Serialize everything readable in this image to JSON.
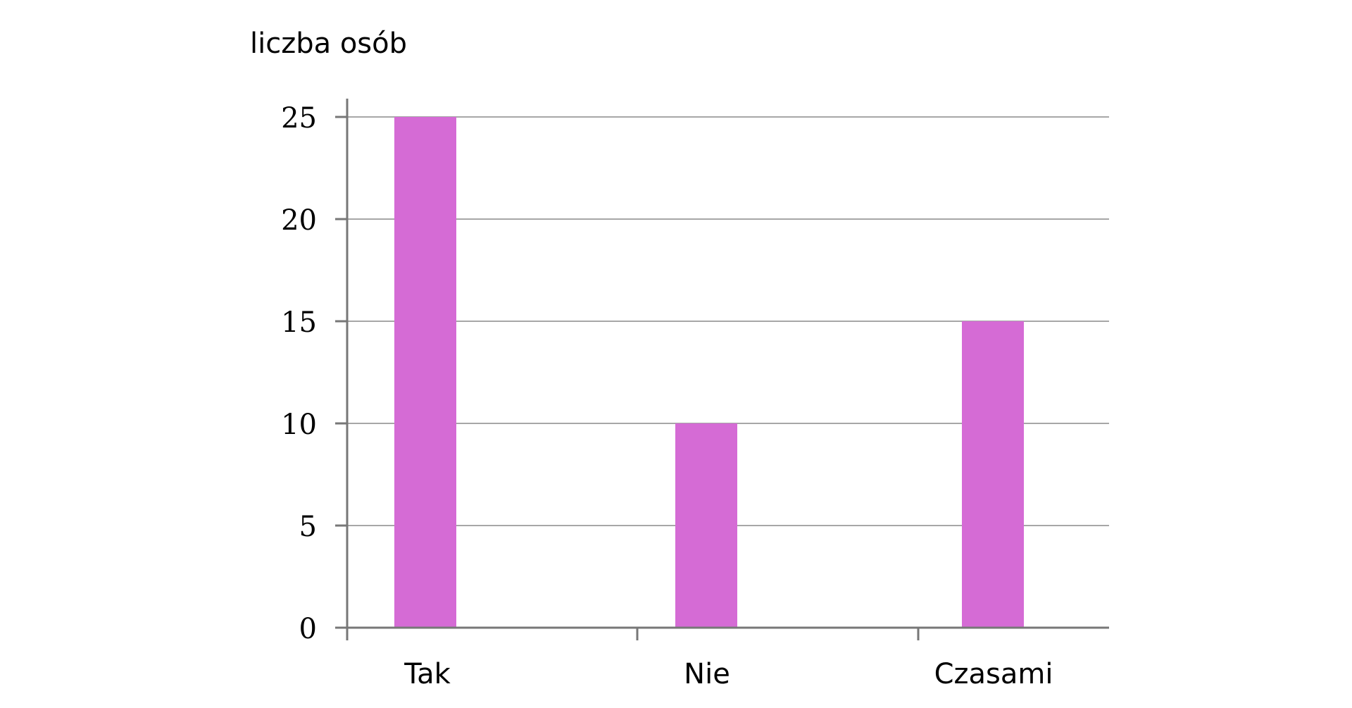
{
  "chart_data": {
    "type": "bar",
    "title": "",
    "xlabel": "",
    "ylabel": "liczba osób",
    "categories": [
      "Tak",
      "Nie",
      "Czasami"
    ],
    "values": [
      25,
      10,
      15
    ],
    "ylim": [
      0,
      25
    ],
    "yticks": [
      "0",
      "5",
      "10",
      "15",
      "20",
      "25"
    ],
    "grid": true,
    "legend": "none",
    "colors": {
      "bar": "#d56bd5",
      "axis": "#777777",
      "grid": "#8a8a8a"
    }
  }
}
